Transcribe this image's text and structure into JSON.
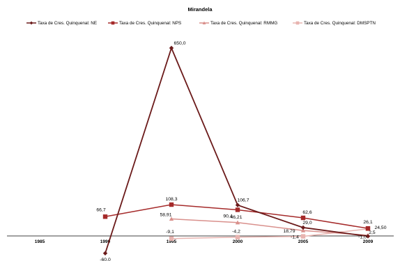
{
  "chart_data": {
    "type": "line",
    "title": "Mirandela",
    "categories": [
      "1985",
      "1990",
      "1995",
      "2000",
      "2005",
      "2009"
    ],
    "ylim": [
      -60,
      650
    ],
    "grid": false,
    "legend_position": "top",
    "series": [
      {
        "name": "Taxa de Cres. Quinquenal: NE",
        "color": "#6b1a1a",
        "marker": "diamond",
        "values": [
          null,
          -60.0,
          650.0,
          106.7,
          29.0,
          -1.0
        ],
        "labels": [
          "",
          "-60,0",
          "650,0",
          "106,7",
          "29,0",
          "-1,0"
        ]
      },
      {
        "name": "Taxa de Cres. Quinquenal: NPS",
        "color": "#a52a2a",
        "marker": "square",
        "values": [
          null,
          66.7,
          108.3,
          90.4,
          62.6,
          26.1
        ],
        "labels": [
          "",
          "66,7",
          "108,3",
          "90,4",
          "62,6",
          "26,1"
        ]
      },
      {
        "name": "Taxa de Cres. Quinquenal: RMMG",
        "color": "#d9908c",
        "marker": "triangle",
        "values": [
          null,
          null,
          58.91,
          46.21,
          18.79,
          2.5
        ],
        "labels": [
          "",
          "",
          "58,91",
          "46,21",
          "18,79",
          "2,5"
        ]
      },
      {
        "name": "Taxa de Cres. Quinquenal: DMSPTN",
        "color": "#e8b4b0",
        "marker": "square",
        "values": [
          null,
          null,
          -9.1,
          -4.2,
          -1.4,
          24.5
        ],
        "labels": [
          "",
          "",
          "-9,1",
          "-4,2",
          "-1,4",
          "24,50"
        ]
      }
    ]
  }
}
